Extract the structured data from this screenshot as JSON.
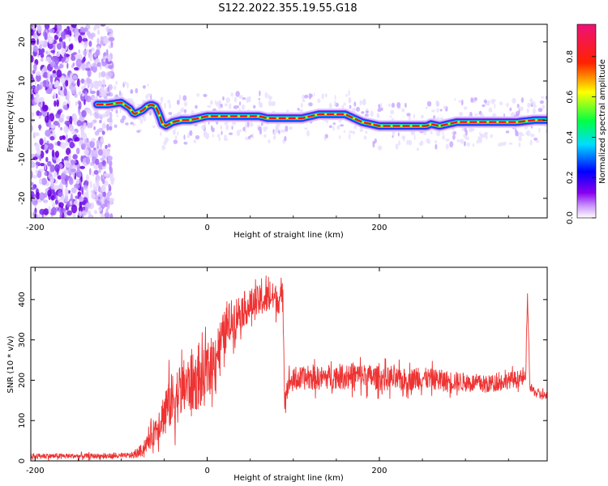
{
  "chart_data": [
    {
      "type": "heatmap",
      "title": "S122.2022.355.19.55.G18",
      "xlabel": "Height of straight line (km)",
      "ylabel": "Frequency (Hz)",
      "xlim": [
        -205,
        395
      ],
      "ylim": [
        -25,
        24.5
      ],
      "xticks": [
        -200,
        0,
        200
      ],
      "yticks": [
        -20,
        -10,
        0,
        10,
        20
      ],
      "colorbar": {
        "label": "Normalized spectral amplitude",
        "range": [
          0,
          0.96
        ],
        "ticks": [
          "0.0",
          "0.2",
          "0.4",
          "0.6",
          "0.8"
        ],
        "colormap": [
          "#ffffff",
          "#7700ee",
          "#0000ff",
          "#00ddff",
          "#00ff00",
          "#ffff00",
          "#ff0000",
          "#ee1177"
        ]
      },
      "ridge": {
        "x": [
          -128,
          -115,
          -100,
          -90,
          -85,
          -80,
          -75,
          -70,
          -65,
          -60,
          -55,
          -52,
          -48,
          -40,
          -30,
          -20,
          0,
          20,
          40,
          60,
          70,
          80,
          95,
          110,
          120,
          130,
          140,
          150,
          160,
          170,
          180,
          200,
          220,
          240,
          255,
          260,
          270,
          280,
          290,
          300,
          310,
          320,
          340,
          360,
          380,
          395
        ],
        "y": [
          4,
          4,
          4.5,
          3,
          1.5,
          2,
          2.5,
          3.5,
          4,
          3.5,
          1,
          -1,
          -1.5,
          -0.5,
          0,
          0,
          1,
          1,
          1,
          1,
          0.5,
          0.5,
          0.5,
          0.5,
          1,
          1.5,
          1.5,
          1.5,
          1.5,
          0.5,
          -0.5,
          -1.5,
          -1.5,
          -1.5,
          -1.5,
          -1,
          -1.5,
          -1,
          -0.5,
          -0.5,
          -0.5,
          -0.5,
          -0.5,
          -0.5,
          0,
          0
        ]
      }
    },
    {
      "type": "line",
      "xlabel": "Height of straight line (km)",
      "ylabel": "SNR (10 * v/v)",
      "xlim": [
        -205,
        395
      ],
      "ylim": [
        0,
        480
      ],
      "xticks": [
        -200,
        0,
        200
      ],
      "yticks": [
        0,
        100,
        200,
        300,
        400
      ],
      "color": "#ee3333",
      "envelope": {
        "x": [
          -205,
          -150,
          -100,
          -85,
          -75,
          -65,
          -55,
          -45,
          -35,
          -25,
          -15,
          -5,
          5,
          15,
          25,
          35,
          45,
          55,
          65,
          75,
          85,
          88,
          90,
          95,
          110,
          130,
          150,
          175,
          200,
          225,
          250,
          275,
          300,
          325,
          350,
          365,
          370,
          372,
          375,
          385,
          395
        ],
        "y": [
          12,
          12,
          12,
          15,
          28,
          60,
          100,
          140,
          165,
          185,
          195,
          200,
          240,
          290,
          340,
          365,
          380,
          390,
          400,
          405,
          400,
          400,
          160,
          195,
          205,
          205,
          210,
          212,
          205,
          200,
          205,
          200,
          195,
          190,
          200,
          205,
          200,
          415,
          180,
          165,
          160
        ]
      },
      "noise_amplitude": {
        "x": [
          -205,
          -90,
          -70,
          -40,
          0,
          40,
          85,
          90,
          180,
          300,
          368,
          370,
          395
        ],
        "y": [
          8,
          8,
          25,
          90,
          90,
          55,
          45,
          35,
          40,
          30,
          25,
          15,
          15
        ]
      }
    }
  ]
}
